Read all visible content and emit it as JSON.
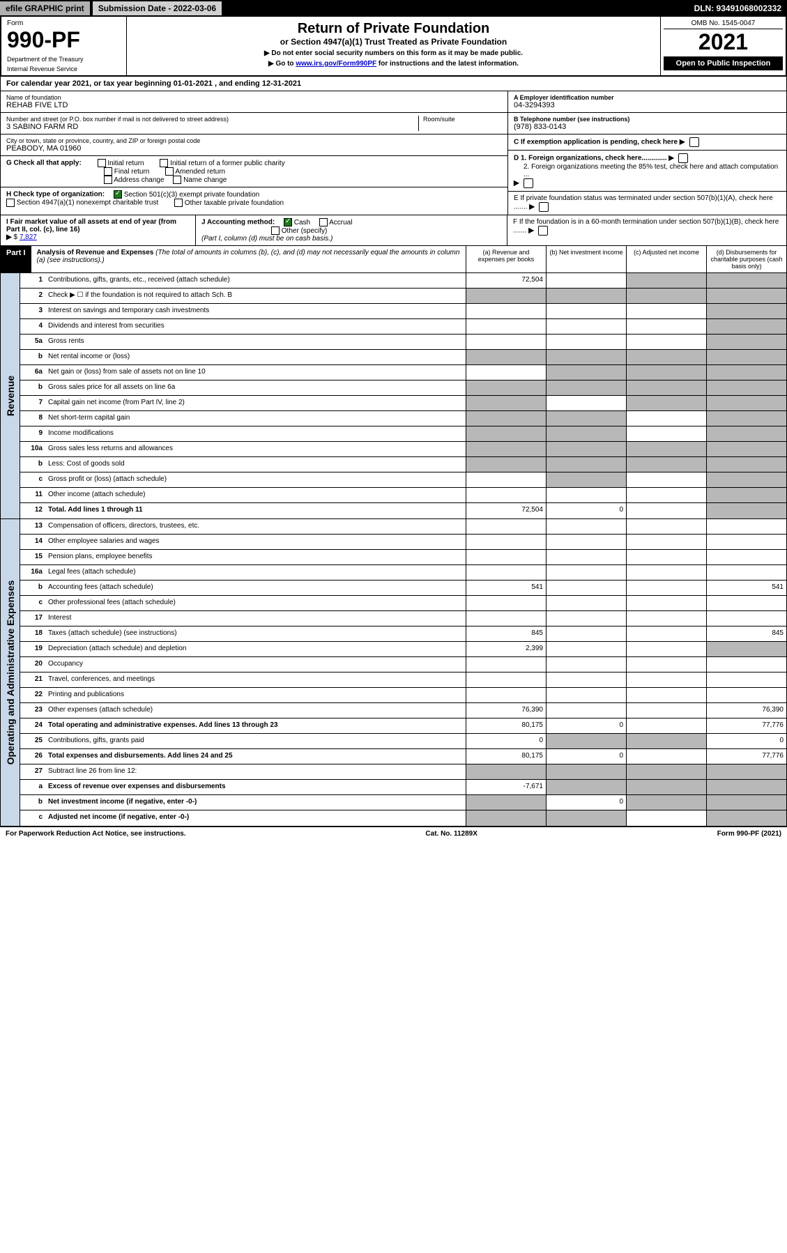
{
  "topbar": {
    "efile": "efile GRAPHIC print",
    "subdate_label": "Submission Date - 2022-03-06",
    "dln": "DLN: 93491068002332"
  },
  "header": {
    "form_label": "Form",
    "form_number": "990-PF",
    "dept1": "Department of the Treasury",
    "dept2": "Internal Revenue Service",
    "title": "Return of Private Foundation",
    "subtitle": "or Section 4947(a)(1) Trust Treated as Private Foundation",
    "note1": "▶ Do not enter social security numbers on this form as it may be made public.",
    "note2_pre": "▶ Go to ",
    "note2_link": "www.irs.gov/Form990PF",
    "note2_post": " for instructions and the latest information.",
    "omb": "OMB No. 1545-0047",
    "year": "2021",
    "open": "Open to Public Inspection"
  },
  "calendar": {
    "text_pre": "For calendar year 2021, or tax year beginning ",
    "begin": "01-01-2021",
    "text_mid": " , and ending ",
    "end": "12-31-2021"
  },
  "info": {
    "name_label": "Name of foundation",
    "name": "REHAB FIVE LTD",
    "addr_label": "Number and street (or P.O. box number if mail is not delivered to street address)",
    "addr": "3 SABINO FARM RD",
    "room_label": "Room/suite",
    "city_label": "City or town, state or province, country, and ZIP or foreign postal code",
    "city": "PEABODY, MA  01960",
    "a_label": "A Employer identification number",
    "a_val": "04-3294393",
    "b_label": "B Telephone number (see instructions)",
    "b_val": "(978) 833-0143",
    "c_label": "C If exemption application is pending, check here",
    "d1": "D 1. Foreign organizations, check here.............",
    "d2": "2. Foreign organizations meeting the 85% test, check here and attach computation ...",
    "e": "E  If private foundation status was terminated under section 507(b)(1)(A), check here .......",
    "f": "F  If the foundation is in a 60-month termination under section 507(b)(1)(B), check here .......",
    "g_label": "G Check all that apply:",
    "g_opts": [
      "Initial return",
      "Initial return of a former public charity",
      "Final return",
      "Amended return",
      "Address change",
      "Name change"
    ],
    "h_label": "H Check type of organization:",
    "h_opt1": "Section 501(c)(3) exempt private foundation",
    "h_opt2": "Section 4947(a)(1) nonexempt charitable trust",
    "h_opt3": "Other taxable private foundation",
    "i_label": "I Fair market value of all assets at end of year (from Part II, col. (c), line 16)",
    "i_val": "7,827",
    "j_label": "J Accounting method:",
    "j_cash": "Cash",
    "j_accrual": "Accrual",
    "j_other": "Other (specify)",
    "j_note": "(Part I, column (d) must be on cash basis.)"
  },
  "part1": {
    "label": "Part I",
    "title": "Analysis of Revenue and Expenses",
    "title_note": " (The total of amounts in columns (b), (c), and (d) may not necessarily equal the amounts in column (a) (see instructions).)",
    "col_a": "(a)   Revenue and expenses per books",
    "col_b": "(b)   Net investment income",
    "col_c": "(c)   Adjusted net income",
    "col_d": "(d)   Disbursements for charitable purposes (cash basis only)"
  },
  "side": {
    "revenue": "Revenue",
    "expenses": "Operating and Administrative Expenses"
  },
  "rows": [
    {
      "n": "1",
      "label": "Contributions, gifts, grants, etc., received (attach schedule)",
      "a": "72,504",
      "b": "",
      "c": "",
      "d": "",
      "grey": [
        "c",
        "d"
      ]
    },
    {
      "n": "2",
      "label": "Check ▶ ☐ if the foundation is not required to attach Sch. B",
      "a": "",
      "b": "",
      "c": "",
      "d": "",
      "grey": [
        "a",
        "b",
        "c",
        "d"
      ]
    },
    {
      "n": "3",
      "label": "Interest on savings and temporary cash investments",
      "a": "",
      "b": "",
      "c": "",
      "d": "",
      "grey": [
        "d"
      ]
    },
    {
      "n": "4",
      "label": "Dividends and interest from securities",
      "a": "",
      "b": "",
      "c": "",
      "d": "",
      "grey": [
        "d"
      ]
    },
    {
      "n": "5a",
      "label": "Gross rents",
      "a": "",
      "b": "",
      "c": "",
      "d": "",
      "grey": [
        "d"
      ]
    },
    {
      "n": "b",
      "label": "Net rental income or (loss)",
      "a": "",
      "b": "",
      "c": "",
      "d": "",
      "grey": [
        "a",
        "b",
        "c",
        "d"
      ]
    },
    {
      "n": "6a",
      "label": "Net gain or (loss) from sale of assets not on line 10",
      "a": "",
      "b": "",
      "c": "",
      "d": "",
      "grey": [
        "b",
        "c",
        "d"
      ]
    },
    {
      "n": "b",
      "label": "Gross sales price for all assets on line 6a",
      "a": "",
      "b": "",
      "c": "",
      "d": "",
      "grey": [
        "a",
        "b",
        "c",
        "d"
      ]
    },
    {
      "n": "7",
      "label": "Capital gain net income (from Part IV, line 2)",
      "a": "",
      "b": "",
      "c": "",
      "d": "",
      "grey": [
        "a",
        "c",
        "d"
      ]
    },
    {
      "n": "8",
      "label": "Net short-term capital gain",
      "a": "",
      "b": "",
      "c": "",
      "d": "",
      "grey": [
        "a",
        "b",
        "d"
      ]
    },
    {
      "n": "9",
      "label": "Income modifications",
      "a": "",
      "b": "",
      "c": "",
      "d": "",
      "grey": [
        "a",
        "b",
        "d"
      ]
    },
    {
      "n": "10a",
      "label": "Gross sales less returns and allowances",
      "a": "",
      "b": "",
      "c": "",
      "d": "",
      "grey": [
        "a",
        "b",
        "c",
        "d"
      ]
    },
    {
      "n": "b",
      "label": "Less: Cost of goods sold",
      "a": "",
      "b": "",
      "c": "",
      "d": "",
      "grey": [
        "a",
        "b",
        "c",
        "d"
      ]
    },
    {
      "n": "c",
      "label": "Gross profit or (loss) (attach schedule)",
      "a": "",
      "b": "",
      "c": "",
      "d": "",
      "grey": [
        "b",
        "d"
      ]
    },
    {
      "n": "11",
      "label": "Other income (attach schedule)",
      "a": "",
      "b": "",
      "c": "",
      "d": "",
      "grey": [
        "d"
      ]
    },
    {
      "n": "12",
      "label": "Total. Add lines 1 through 11",
      "bold": true,
      "a": "72,504",
      "b": "0",
      "c": "",
      "d": "",
      "grey": [
        "d"
      ]
    }
  ],
  "exp_rows": [
    {
      "n": "13",
      "label": "Compensation of officers, directors, trustees, etc.",
      "a": "",
      "b": "",
      "c": "",
      "d": ""
    },
    {
      "n": "14",
      "label": "Other employee salaries and wages",
      "a": "",
      "b": "",
      "c": "",
      "d": ""
    },
    {
      "n": "15",
      "label": "Pension plans, employee benefits",
      "a": "",
      "b": "",
      "c": "",
      "d": ""
    },
    {
      "n": "16a",
      "label": "Legal fees (attach schedule)",
      "a": "",
      "b": "",
      "c": "",
      "d": ""
    },
    {
      "n": "b",
      "label": "Accounting fees (attach schedule)",
      "a": "541",
      "b": "",
      "c": "",
      "d": "541"
    },
    {
      "n": "c",
      "label": "Other professional fees (attach schedule)",
      "a": "",
      "b": "",
      "c": "",
      "d": ""
    },
    {
      "n": "17",
      "label": "Interest",
      "a": "",
      "b": "",
      "c": "",
      "d": ""
    },
    {
      "n": "18",
      "label": "Taxes (attach schedule) (see instructions)",
      "a": "845",
      "b": "",
      "c": "",
      "d": "845"
    },
    {
      "n": "19",
      "label": "Depreciation (attach schedule) and depletion",
      "a": "2,399",
      "b": "",
      "c": "",
      "d": "",
      "grey": [
        "d"
      ]
    },
    {
      "n": "20",
      "label": "Occupancy",
      "a": "",
      "b": "",
      "c": "",
      "d": ""
    },
    {
      "n": "21",
      "label": "Travel, conferences, and meetings",
      "a": "",
      "b": "",
      "c": "",
      "d": ""
    },
    {
      "n": "22",
      "label": "Printing and publications",
      "a": "",
      "b": "",
      "c": "",
      "d": ""
    },
    {
      "n": "23",
      "label": "Other expenses (attach schedule)",
      "a": "76,390",
      "b": "",
      "c": "",
      "d": "76,390"
    },
    {
      "n": "24",
      "label": "Total operating and administrative expenses. Add lines 13 through 23",
      "bold": true,
      "a": "80,175",
      "b": "0",
      "c": "",
      "d": "77,776"
    },
    {
      "n": "25",
      "label": "Contributions, gifts, grants paid",
      "a": "0",
      "b": "",
      "c": "",
      "d": "0",
      "grey": [
        "b",
        "c"
      ]
    },
    {
      "n": "26",
      "label": "Total expenses and disbursements. Add lines 24 and 25",
      "bold": true,
      "a": "80,175",
      "b": "0",
      "c": "",
      "d": "77,776"
    },
    {
      "n": "27",
      "label": "Subtract line 26 from line 12:",
      "a": "",
      "b": "",
      "c": "",
      "d": "",
      "grey": [
        "a",
        "b",
        "c",
        "d"
      ]
    },
    {
      "n": "a",
      "label": "Excess of revenue over expenses and disbursements",
      "bold": true,
      "a": "-7,671",
      "b": "",
      "c": "",
      "d": "",
      "grey": [
        "b",
        "c",
        "d"
      ]
    },
    {
      "n": "b",
      "label": "Net investment income (if negative, enter -0-)",
      "bold": true,
      "a": "",
      "b": "0",
      "c": "",
      "d": "",
      "grey": [
        "a",
        "c",
        "d"
      ]
    },
    {
      "n": "c",
      "label": "Adjusted net income (if negative, enter -0-)",
      "bold": true,
      "a": "",
      "b": "",
      "c": "",
      "d": "",
      "grey": [
        "a",
        "b",
        "d"
      ]
    }
  ],
  "footer": {
    "left": "For Paperwork Reduction Act Notice, see instructions.",
    "mid": "Cat. No. 11289X",
    "right": "Form 990-PF (2021)"
  }
}
